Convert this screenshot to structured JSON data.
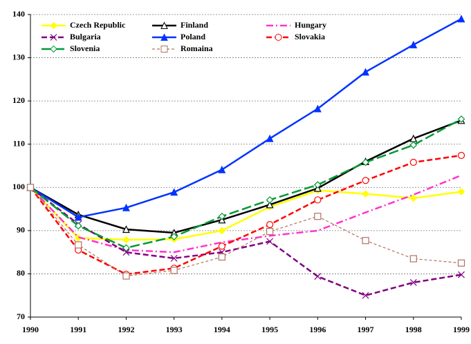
{
  "chart_data": {
    "type": "line",
    "x": [
      1990,
      1991,
      1992,
      1993,
      1994,
      1995,
      1996,
      1997,
      1998,
      1999
    ],
    "xlim": [
      1990,
      1999
    ],
    "xticks": [
      1990,
      1991,
      1992,
      1993,
      1994,
      1995,
      1996,
      1997,
      1998,
      1999
    ],
    "ylim": [
      70,
      140
    ],
    "yticks": [
      70,
      80,
      90,
      100,
      110,
      120,
      130,
      140
    ],
    "grid": true,
    "legend": "top-left",
    "series": [
      {
        "name": "Czech Republic",
        "color": "#ffff00",
        "marker": "diamond-filled",
        "dash": "solid",
        "values": [
          100,
          88.3,
          87.9,
          88,
          90,
          95.5,
          99.3,
          98.5,
          97.5,
          99
        ]
      },
      {
        "name": "Finland",
        "color": "#000000",
        "marker": "triangle-open",
        "dash": "solid",
        "values": [
          100,
          93.7,
          90.3,
          89.5,
          92.5,
          96,
          99.8,
          106,
          111.3,
          115.5
        ]
      },
      {
        "name": "Hungary",
        "color": "#ff33cc",
        "marker": "none",
        "dash": "dashdot",
        "values": [
          100,
          88.5,
          85.5,
          85,
          87.3,
          88.8,
          90,
          94.2,
          98.3,
          102.8
        ]
      },
      {
        "name": "Bulgaria",
        "color": "#800080",
        "marker": "x",
        "dash": "dash",
        "values": [
          100,
          91.5,
          85,
          83.6,
          85,
          87.5,
          79.4,
          75,
          78,
          79.8
        ]
      },
      {
        "name": "Poland",
        "color": "#0033ff",
        "marker": "triangle-filled",
        "dash": "solid",
        "values": [
          100,
          93.1,
          95.3,
          98.9,
          104.1,
          111.3,
          118.2,
          126.7,
          133,
          139
        ]
      },
      {
        "name": "Slovakia",
        "color": "#ff0000",
        "marker": "circle-open",
        "dash": "dash",
        "values": [
          100,
          85.5,
          79.9,
          81.3,
          86.4,
          91.4,
          97.1,
          101.6,
          105.8,
          107.4
        ]
      },
      {
        "name": "Slovenia",
        "color": "#009933",
        "marker": "diamond-open",
        "dash": "longdash",
        "values": [
          100,
          91.1,
          86,
          88.6,
          93.3,
          97.1,
          100.6,
          105.8,
          109.8,
          115.8
        ]
      },
      {
        "name": "Romaina",
        "color": "#b07060",
        "marker": "square-open",
        "dash": "shortdash",
        "values": [
          100,
          86.7,
          79.5,
          80.8,
          83.9,
          89.8,
          93.3,
          87.7,
          83.5,
          82.5
        ]
      }
    ]
  }
}
